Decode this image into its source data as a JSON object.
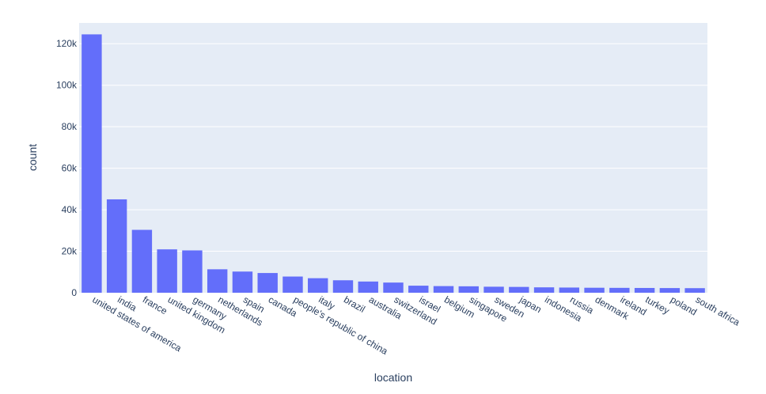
{
  "chart_data": {
    "type": "bar",
    "xlabel": "location",
    "ylabel": "count",
    "categories": [
      "united states of america",
      "india",
      "france",
      "united kingdom",
      "germany",
      "netherlands",
      "spain",
      "canada",
      "people's republic of china",
      "italy",
      "brazil",
      "australia",
      "switzerland",
      "israel",
      "belgium",
      "singapore",
      "sweden",
      "japan",
      "indonesia",
      "russia",
      "denmark",
      "ireland",
      "turkey",
      "poland",
      "south africa"
    ],
    "values": [
      124500,
      45000,
      30300,
      20900,
      20400,
      11300,
      10200,
      9500,
      7800,
      7000,
      6000,
      5400,
      4900,
      3400,
      3200,
      3100,
      2900,
      2800,
      2600,
      2500,
      2400,
      2350,
      2300,
      2250,
      2200
    ],
    "ylim": [
      0,
      130000
    ],
    "y_ticks": [
      0,
      20000,
      40000,
      60000,
      80000,
      100000,
      120000
    ],
    "y_tick_labels": [
      "0",
      "20k",
      "40k",
      "60k",
      "80k",
      "100k",
      "120k"
    ],
    "grid": true,
    "colors": {
      "bar": "#636efa",
      "plot_bg": "#e5ecf6",
      "grid": "#ffffff",
      "text": "#2a3f5f"
    }
  }
}
